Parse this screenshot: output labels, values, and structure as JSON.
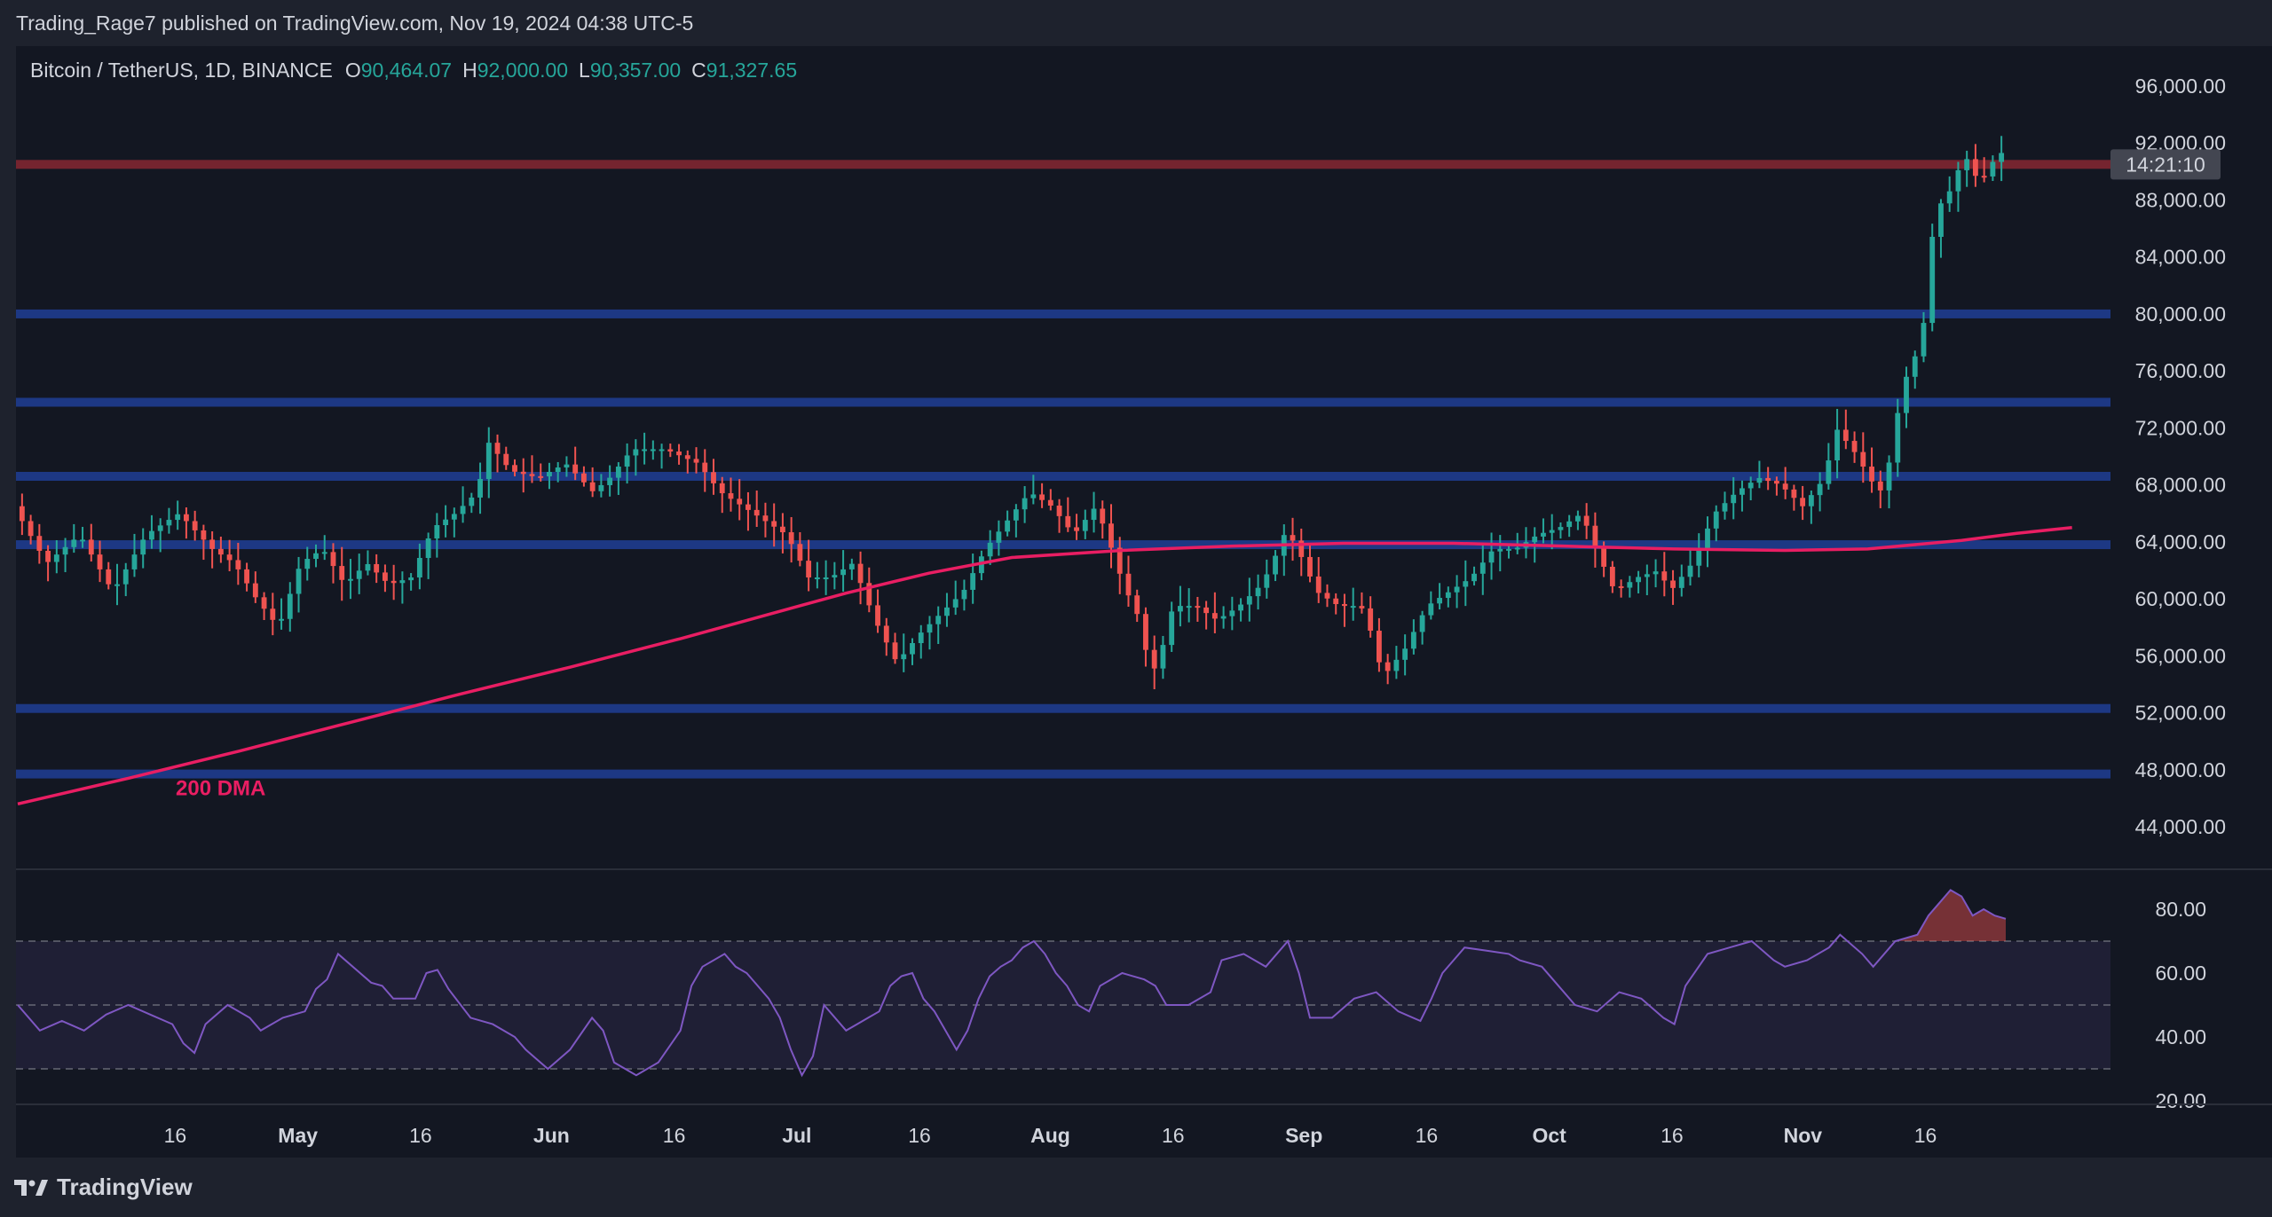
{
  "header": {
    "publisher": "Trading_Rage7 published on TradingView.com, Nov 19, 2024 04:38 UTC-5"
  },
  "legend": {
    "symbol": "Bitcoin / TetherUS, 1D, BINANCE",
    "o_label": "O",
    "o_value": "90,464.07",
    "h_label": "H",
    "h_value": "92,000.00",
    "l_label": "L",
    "l_value": "90,357.00",
    "c_label": "C",
    "c_value": "91,327.65"
  },
  "countdown": "14:21:10",
  "footer": {
    "brand": "TradingView"
  },
  "colors": {
    "up": "#26a69a",
    "down": "#ef5350",
    "dma": "#e91e63",
    "support": "#1e3a8a",
    "resistance": "#7a2530",
    "rsi": "#7e57c2"
  },
  "chart_data": [
    {
      "type": "candlestick",
      "title": "Bitcoin / TetherUS, 1D, BINANCE",
      "ylim": [
        42000,
        98000
      ],
      "price_ticks": [
        "96,000.00",
        "92,000.00",
        "88,000.00",
        "84,000.00",
        "80,000.00",
        "76,000.00",
        "72,000.00",
        "68,000.00",
        "64,000.00",
        "60,000.00",
        "56,000.00",
        "52,000.00",
        "48,000.00",
        "44,000.00"
      ],
      "price_tick_values": [
        96000,
        92000,
        88000,
        84000,
        80000,
        76000,
        72000,
        68000,
        64000,
        60000,
        56000,
        52000,
        48000,
        44000
      ],
      "x_ticks": [
        "16",
        "May",
        "16",
        "Jun",
        "16",
        "Jul",
        "16",
        "Aug",
        "16",
        "Sep",
        "16",
        "Oct",
        "16",
        "Nov",
        "16"
      ],
      "x_tick_days": [
        16,
        31,
        46,
        62,
        77,
        92,
        107,
        123,
        138,
        154,
        169,
        184,
        199,
        215,
        230
      ],
      "last_day": 232,
      "levels": [
        {
          "value": 90500,
          "kind": "resistance"
        },
        {
          "value": 80000,
          "kind": "support"
        },
        {
          "value": 73800,
          "kind": "support"
        },
        {
          "value": 68600,
          "kind": "support"
        },
        {
          "value": 63800,
          "kind": "support"
        },
        {
          "value": 52300,
          "kind": "support"
        },
        {
          "value": 47700,
          "kind": "support"
        }
      ],
      "dma_label": "200 DMA",
      "dma": [
        [
          0,
          45600
        ],
        [
          20,
          47400
        ],
        [
          40,
          49300
        ],
        [
          60,
          51300
        ],
        [
          80,
          53300
        ],
        [
          100,
          55200
        ],
        [
          120,
          57200
        ],
        [
          135,
          58800
        ],
        [
          150,
          60400
        ],
        [
          165,
          61800
        ],
        [
          180,
          62900
        ],
        [
          200,
          63400
        ],
        [
          220,
          63700
        ],
        [
          240,
          63900
        ],
        [
          260,
          63900
        ],
        [
          280,
          63700
        ],
        [
          300,
          63500
        ],
        [
          320,
          63400
        ],
        [
          335,
          63500
        ],
        [
          352,
          64100
        ],
        [
          362,
          64600
        ],
        [
          372,
          65000
        ]
      ],
      "price_path": [
        [
          0,
          66500
        ],
        [
          6,
          62500
        ],
        [
          12,
          64500
        ],
        [
          18,
          60500
        ],
        [
          24,
          64500
        ],
        [
          30,
          66000
        ],
        [
          36,
          63500
        ],
        [
          40,
          62500
        ],
        [
          44,
          60000
        ],
        [
          48,
          58000
        ],
        [
          52,
          62500
        ],
        [
          56,
          63500
        ],
        [
          60,
          61000
        ],
        [
          64,
          62500
        ],
        [
          68,
          61000
        ],
        [
          72,
          61500
        ],
        [
          76,
          65000
        ],
        [
          80,
          66000
        ],
        [
          84,
          67500
        ],
        [
          86,
          71000
        ],
        [
          90,
          69000
        ],
        [
          95,
          68500
        ],
        [
          100,
          69500
        ],
        [
          105,
          67500
        ],
        [
          108,
          68500
        ],
        [
          112,
          70500
        ],
        [
          118,
          70500
        ],
        [
          124,
          69500
        ],
        [
          128,
          67500
        ],
        [
          134,
          66000
        ],
        [
          140,
          64500
        ],
        [
          144,
          61500
        ],
        [
          148,
          61500
        ],
        [
          152,
          62500
        ],
        [
          156,
          58500
        ],
        [
          160,
          55500
        ],
        [
          164,
          57500
        ],
        [
          168,
          59000
        ],
        [
          172,
          60500
        ],
        [
          176,
          63500
        ],
        [
          180,
          65500
        ],
        [
          184,
          67500
        ],
        [
          188,
          66500
        ],
        [
          192,
          64500
        ],
        [
          196,
          66500
        ],
        [
          198,
          64500
        ],
        [
          201,
          61000
        ],
        [
          204,
          58500
        ],
        [
          206,
          54500
        ],
        [
          208,
          56500
        ],
        [
          210,
          59500
        ],
        [
          214,
          59500
        ],
        [
          218,
          58500
        ],
        [
          222,
          59500
        ],
        [
          226,
          61000
        ],
        [
          228,
          62500
        ],
        [
          230,
          64500
        ],
        [
          232,
          64000
        ],
        [
          236,
          60500
        ],
        [
          240,
          59500
        ],
        [
          244,
          59500
        ],
        [
          246,
          57500
        ],
        [
          248,
          54500
        ],
        [
          252,
          56500
        ],
        [
          256,
          59500
        ],
        [
          260,
          60500
        ],
        [
          264,
          61500
        ],
        [
          268,
          63500
        ],
        [
          272,
          63500
        ],
        [
          276,
          64500
        ],
        [
          280,
          65000
        ],
        [
          284,
          66000
        ],
        [
          286,
          64000
        ],
        [
          290,
          60500
        ],
        [
          294,
          61500
        ],
        [
          298,
          62000
        ],
        [
          300,
          60500
        ],
        [
          304,
          62500
        ],
        [
          308,
          66000
        ],
        [
          312,
          67500
        ],
        [
          316,
          68500
        ],
        [
          320,
          68000
        ],
        [
          324,
          66500
        ],
        [
          328,
          68500
        ],
        [
          330,
          72000
        ],
        [
          334,
          70000
        ],
        [
          336,
          68500
        ],
        [
          338,
          67500
        ],
        [
          340,
          70000
        ],
        [
          342,
          75000
        ],
        [
          344,
          76500
        ],
        [
          346,
          79500
        ],
        [
          348,
          87500
        ],
        [
          350,
          88000
        ],
        [
          352,
          90000
        ],
        [
          354,
          91000
        ],
        [
          356,
          89000
        ],
        [
          358,
          90500
        ],
        [
          360,
          91300
        ]
      ],
      "rsi": {
        "ticks": [
          "80.00",
          "60.00",
          "40.00",
          "20.00"
        ],
        "tick_values": [
          80,
          60,
          40,
          20
        ],
        "ylim": [
          18,
          88
        ],
        "overbought": 70,
        "mid": 50,
        "oversold": 30,
        "values": [
          [
            0,
            50
          ],
          [
            4,
            42
          ],
          [
            8,
            45
          ],
          [
            12,
            42
          ],
          [
            16,
            47
          ],
          [
            20,
            50
          ],
          [
            24,
            47
          ],
          [
            28,
            44
          ],
          [
            30,
            38
          ],
          [
            32,
            35
          ],
          [
            34,
            44
          ],
          [
            38,
            50
          ],
          [
            42,
            46
          ],
          [
            44,
            42
          ],
          [
            48,
            46
          ],
          [
            52,
            48
          ],
          [
            54,
            55
          ],
          [
            56,
            58
          ],
          [
            58,
            66
          ],
          [
            62,
            60
          ],
          [
            64,
            57
          ],
          [
            66,
            56
          ],
          [
            68,
            52
          ],
          [
            72,
            52
          ],
          [
            74,
            60
          ],
          [
            76,
            61
          ],
          [
            78,
            55
          ],
          [
            82,
            46
          ],
          [
            86,
            44
          ],
          [
            90,
            40
          ],
          [
            92,
            36
          ],
          [
            94,
            33
          ],
          [
            96,
            30
          ],
          [
            100,
            36
          ],
          [
            104,
            46
          ],
          [
            106,
            42
          ],
          [
            108,
            32
          ],
          [
            112,
            28
          ],
          [
            116,
            32
          ],
          [
            120,
            42
          ],
          [
            122,
            56
          ],
          [
            124,
            62
          ],
          [
            128,
            66
          ],
          [
            130,
            62
          ],
          [
            132,
            60
          ],
          [
            134,
            56
          ],
          [
            136,
            52
          ],
          [
            138,
            46
          ],
          [
            140,
            36
          ],
          [
            142,
            28
          ],
          [
            144,
            34
          ],
          [
            146,
            50
          ],
          [
            150,
            42
          ],
          [
            152,
            44
          ],
          [
            154,
            46
          ],
          [
            156,
            48
          ],
          [
            158,
            56
          ],
          [
            160,
            59
          ],
          [
            162,
            60
          ],
          [
            164,
            52
          ],
          [
            166,
            48
          ],
          [
            168,
            42
          ],
          [
            170,
            36
          ],
          [
            172,
            42
          ],
          [
            174,
            52
          ],
          [
            176,
            59
          ],
          [
            178,
            62
          ],
          [
            180,
            64
          ],
          [
            182,
            68
          ],
          [
            184,
            70
          ],
          [
            186,
            66
          ],
          [
            188,
            60
          ],
          [
            190,
            56
          ],
          [
            192,
            50
          ],
          [
            194,
            48
          ],
          [
            196,
            56
          ],
          [
            200,
            60
          ],
          [
            204,
            58
          ],
          [
            206,
            56
          ],
          [
            208,
            50
          ],
          [
            212,
            50
          ],
          [
            216,
            54
          ],
          [
            218,
            64
          ],
          [
            222,
            66
          ],
          [
            226,
            62
          ],
          [
            230,
            70
          ],
          [
            232,
            60
          ],
          [
            234,
            46
          ],
          [
            238,
            46
          ],
          [
            242,
            52
          ],
          [
            246,
            54
          ],
          [
            250,
            48
          ],
          [
            254,
            45
          ],
          [
            256,
            52
          ],
          [
            258,
            60
          ],
          [
            260,
            64
          ],
          [
            262,
            68
          ],
          [
            266,
            67
          ],
          [
            270,
            66
          ],
          [
            272,
            64
          ],
          [
            276,
            62
          ],
          [
            278,
            58
          ],
          [
            282,
            50
          ],
          [
            286,
            48
          ],
          [
            290,
            54
          ],
          [
            294,
            52
          ],
          [
            298,
            46
          ],
          [
            300,
            44
          ],
          [
            302,
            56
          ],
          [
            306,
            66
          ],
          [
            310,
            68
          ],
          [
            314,
            70
          ],
          [
            318,
            64
          ],
          [
            320,
            62
          ],
          [
            324,
            64
          ],
          [
            328,
            68
          ],
          [
            330,
            72
          ],
          [
            334,
            66
          ],
          [
            336,
            62
          ],
          [
            340,
            70
          ],
          [
            344,
            72
          ],
          [
            346,
            78
          ],
          [
            348,
            82
          ],
          [
            350,
            86
          ],
          [
            352,
            84
          ],
          [
            354,
            78
          ],
          [
            356,
            80
          ],
          [
            358,
            78
          ],
          [
            360,
            77
          ]
        ]
      }
    }
  ]
}
